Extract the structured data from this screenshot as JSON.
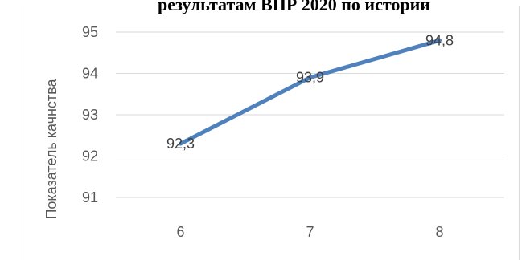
{
  "chart_data": {
    "type": "line",
    "title": "результатам ВПР 2020 по истории",
    "ylabel": "Показатель качнства",
    "xlabel": "",
    "categories": [
      "6",
      "7",
      "8"
    ],
    "series": [
      {
        "values": [
          92.3,
          93.9,
          94.8
        ],
        "labels": [
          "92,3",
          "93,9",
          "94,8"
        ]
      }
    ],
    "yticks": [
      "91",
      "92",
      "93",
      "94",
      "95"
    ],
    "ylim": [
      91,
      95
    ],
    "grid": true,
    "legend": "none",
    "line_color": "#4f81bd"
  }
}
